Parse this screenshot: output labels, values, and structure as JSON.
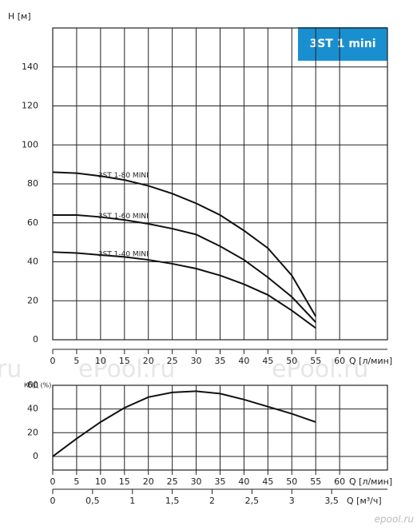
{
  "badge": "3ST 1 mini",
  "watermarks": [
    "ru",
    "ePool.ru",
    "ePool.ru"
  ],
  "logo": "epool.ru",
  "chart_data": [
    {
      "type": "line",
      "ylabel": "H [м]",
      "xlabel": "Q [л/мин]",
      "x": [
        0,
        5,
        10,
        15,
        20,
        25,
        30,
        35,
        40,
        45,
        50,
        55
      ],
      "series": [
        {
          "name": "3ST 1-80 MINI",
          "color": "#111111",
          "values": [
            86,
            85.5,
            84,
            82,
            79,
            75,
            70,
            64,
            56,
            47,
            33,
            12
          ]
        },
        {
          "name": "3ST 1-60 MINI",
          "color": "#111111",
          "values": [
            64,
            64,
            63,
            61.5,
            59.5,
            57,
            54,
            48,
            41,
            32,
            22,
            9
          ]
        },
        {
          "name": "3ST 1-40 MINI",
          "color": "#111111",
          "values": [
            45,
            44.5,
            43.5,
            42.5,
            41,
            39,
            36.5,
            33,
            28.5,
            23,
            15,
            6
          ]
        }
      ],
      "xlim": [
        0,
        70
      ],
      "xticks": [
        0,
        5,
        10,
        15,
        20,
        25,
        30,
        35,
        40,
        45,
        50,
        55,
        60
      ],
      "ylim": [
        0,
        160
      ],
      "yticks": [
        0,
        20,
        40,
        60,
        80,
        100,
        120,
        140
      ],
      "grid": true
    },
    {
      "type": "line",
      "ylabel": "КПД (%)",
      "xlabel": "Q [л/мин]",
      "x2label": "Q [м³/ч]",
      "x": [
        0,
        5,
        10,
        15,
        20,
        25,
        30,
        35,
        40,
        45,
        50,
        55
      ],
      "series": [
        {
          "name": null,
          "color": "#111111",
          "values": [
            0,
            15,
            29,
            41,
            50,
            54,
            55,
            53,
            48,
            42,
            36,
            29
          ]
        }
      ],
      "xlim": [
        0,
        70
      ],
      "xticks": [
        0,
        5,
        10,
        15,
        20,
        25,
        30,
        35,
        40,
        45,
        50,
        55,
        60
      ],
      "x2lim": [
        0,
        4.2
      ],
      "x2ticks": [
        0,
        {
          "value": 0.5,
          "label": "0,5"
        },
        1,
        {
          "value": 1.5,
          "label": "1,5"
        },
        2,
        {
          "value": 2.5,
          "label": "2,5"
        },
        3,
        {
          "value": 3.5,
          "label": "3,5"
        }
      ],
      "ylim": [
        -11.5,
        60
      ],
      "yticks": [
        0,
        20,
        40,
        60
      ],
      "grid": true
    }
  ]
}
